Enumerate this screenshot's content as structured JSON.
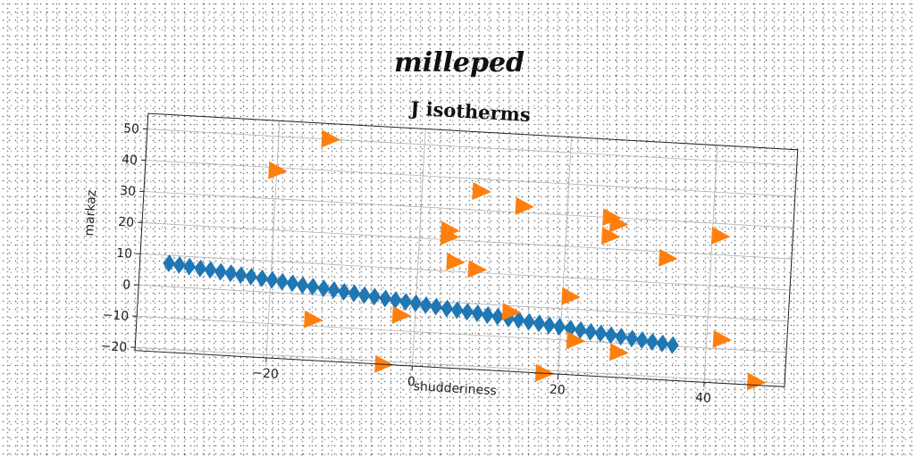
{
  "figure_title": "milleped",
  "chart_data": {
    "type": "scatter",
    "title": "J isotherms",
    "xlabel": "shudderiness",
    "ylabel": "markaz",
    "xlim": [
      -38,
      51
    ],
    "ylim": [
      -21,
      55
    ],
    "xticks": [
      -20,
      0,
      20,
      40
    ],
    "yticks": [
      -20,
      -10,
      0,
      10,
      20,
      30,
      40,
      50
    ],
    "xtick_labels": [
      "−20",
      "0",
      "20",
      "40"
    ],
    "ytick_labels": [
      "−20",
      "−10",
      "0",
      "10",
      "20",
      "30",
      "40",
      "50"
    ],
    "grid": true,
    "series": [
      {
        "marker": "diamond",
        "color": "#1f77b4",
        "x": [
          -34.0,
          -32.6,
          -31.2,
          -29.7,
          -28.3,
          -26.9,
          -25.5,
          -24.1,
          -22.7,
          -21.2,
          -19.8,
          -18.4,
          -17.0,
          -15.6,
          -14.2,
          -12.7,
          -11.3,
          -9.9,
          -8.5,
          -7.1,
          -5.7,
          -4.2,
          -2.8,
          -1.4,
          0.0,
          1.4,
          2.8,
          4.3,
          5.7,
          7.1,
          8.5,
          9.9,
          11.3,
          12.8,
          14.2,
          15.6,
          17.0,
          18.4,
          19.8,
          21.3,
          22.7,
          24.1,
          25.5,
          26.9,
          28.3,
          29.8,
          31.2,
          32.6,
          34.0,
          35.4
        ],
        "y": [
          7.5,
          7.1,
          6.8,
          6.4,
          6.1,
          5.7,
          5.4,
          5.0,
          4.7,
          4.3,
          4.0,
          3.6,
          3.3,
          2.9,
          2.6,
          2.2,
          1.9,
          1.5,
          1.2,
          0.8,
          0.5,
          0.1,
          -0.2,
          -0.6,
          -0.9,
          -1.3,
          -1.6,
          -2.0,
          -2.3,
          -2.7,
          -3.0,
          -3.4,
          -3.7,
          -4.1,
          -4.4,
          -4.8,
          -5.1,
          -5.5,
          -5.8,
          -6.2,
          -6.5,
          -6.9,
          -7.2,
          -7.6,
          -7.9,
          -8.3,
          -8.6,
          -9.0,
          -9.3,
          -9.7
        ]
      },
      {
        "marker": "triangle-right",
        "color": "#ff7f0e",
        "x": [
          -13.0,
          -20.0,
          8.0,
          14.0,
          26.0,
          27.0,
          26.0,
          41.0,
          4.0,
          4.0,
          34.0,
          5.0,
          8.0,
          21.0,
          13.0,
          -14.0,
          -2.0,
          22.0,
          28.0,
          42.0,
          47.0,
          -4.0,
          18.0
        ],
        "y": [
          50.0,
          39.0,
          36.0,
          32.0,
          30.0,
          28.0,
          24.0,
          26.0,
          23.0,
          21.0,
          18.0,
          13.0,
          11.0,
          4.0,
          -2.0,
          -8.0,
          -5.0,
          -10.0,
          -13.0,
          -7.0,
          -20.0,
          -21.0,
          -21.0
        ]
      }
    ]
  }
}
